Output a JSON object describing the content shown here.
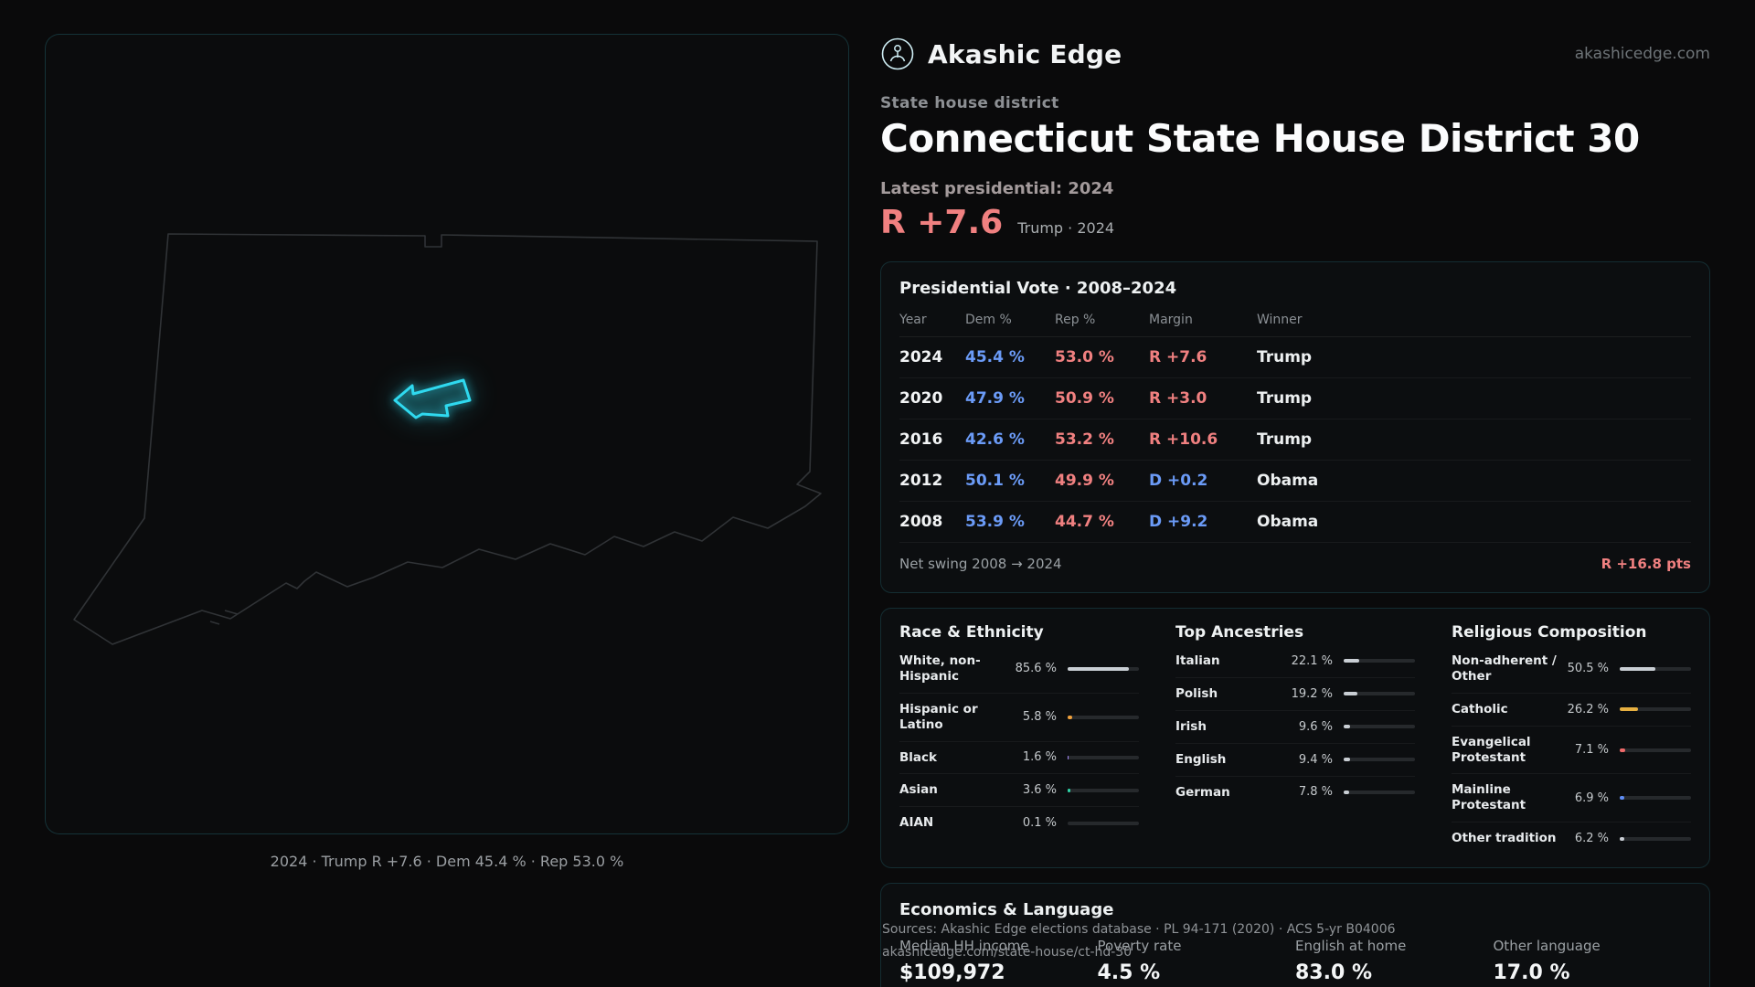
{
  "page": {
    "colors": {
      "accent": "#2fd9ef",
      "dem": "#6b9bf7",
      "rep": "#f08080"
    }
  },
  "header": {
    "brand": "Akashic Edge",
    "domain": "akashicedge.com"
  },
  "hero": {
    "eyebrow": "State house district",
    "title": "Connecticut State House District 30",
    "latest_label": "Latest presidential: 2024",
    "margin_value": "R +7.6",
    "margin_context": "Trump · 2024"
  },
  "map": {
    "caption": "2024 · Trump R +7.6 · Dem 45.4 % · Rep 53.0 %"
  },
  "presidential": {
    "title": "Presidential Vote · 2008–2024",
    "columns": [
      "Year",
      "Dem %",
      "Rep %",
      "Margin",
      "Winner"
    ],
    "rows": [
      {
        "year": "2024",
        "dem": "45.4 %",
        "rep": "53.0 %",
        "margin": "R +7.6",
        "margin_party": "R",
        "winner": "Trump"
      },
      {
        "year": "2020",
        "dem": "47.9 %",
        "rep": "50.9 %",
        "margin": "R +3.0",
        "margin_party": "R",
        "winner": "Trump"
      },
      {
        "year": "2016",
        "dem": "42.6 %",
        "rep": "53.2 %",
        "margin": "R +10.6",
        "margin_party": "R",
        "winner": "Trump"
      },
      {
        "year": "2012",
        "dem": "50.1 %",
        "rep": "49.9 %",
        "margin": "D +0.2",
        "margin_party": "D",
        "winner": "Obama"
      },
      {
        "year": "2008",
        "dem": "53.9 %",
        "rep": "44.7 %",
        "margin": "D +9.2",
        "margin_party": "D",
        "winner": "Obama"
      }
    ],
    "net_swing_label": "Net swing 2008 → 2024",
    "net_swing_value": "R +16.8 pts"
  },
  "demographics": {
    "race": {
      "title": "Race & Ethnicity",
      "rows": [
        {
          "label": "White, non-Hispanic",
          "value": "85.6 %",
          "pct": 85.6,
          "color": "#c9ced4"
        },
        {
          "label": "Hispanic or Latino",
          "value": "5.8 %",
          "pct": 5.8,
          "color": "#f0a13c"
        },
        {
          "label": "Black",
          "value": "1.6 %",
          "pct": 1.6,
          "color": "#a78bfa"
        },
        {
          "label": "Asian",
          "value": "3.6 %",
          "pct": 3.6,
          "color": "#2fd4a7"
        },
        {
          "label": "AIAN",
          "value": "0.1 %",
          "pct": 0.1,
          "color": "#c9ced4"
        }
      ]
    },
    "ancestries": {
      "title": "Top Ancestries",
      "rows": [
        {
          "label": "Italian",
          "value": "22.1 %",
          "pct": 22.1,
          "color": "#c9ced4"
        },
        {
          "label": "Polish",
          "value": "19.2 %",
          "pct": 19.2,
          "color": "#c9ced4"
        },
        {
          "label": "Irish",
          "value": "9.6 %",
          "pct": 9.6,
          "color": "#c9ced4"
        },
        {
          "label": "English",
          "value": "9.4 %",
          "pct": 9.4,
          "color": "#c9ced4"
        },
        {
          "label": "German",
          "value": "7.8 %",
          "pct": 7.8,
          "color": "#c9ced4"
        }
      ]
    },
    "religion": {
      "title": "Religious Composition",
      "rows": [
        {
          "label": "Non-adherent / Other",
          "value": "50.5 %",
          "pct": 50.5,
          "color": "#c9ced4"
        },
        {
          "label": "Catholic",
          "value": "26.2 %",
          "pct": 26.2,
          "color": "#e7b041"
        },
        {
          "label": "Evangelical Protestant",
          "value": "7.1 %",
          "pct": 7.1,
          "color": "#ef6a6a"
        },
        {
          "label": "Mainline Protestant",
          "value": "6.9 %",
          "pct": 6.9,
          "color": "#5f8df5"
        },
        {
          "label": "Other tradition",
          "value": "6.2 %",
          "pct": 6.2,
          "color": "#c9ced4"
        }
      ]
    }
  },
  "economics": {
    "title": "Economics & Language",
    "stats": [
      {
        "label": "Median HH income",
        "value": "$109,972"
      },
      {
        "label": "Poverty rate",
        "value": "4.5 %"
      },
      {
        "label": "English at home",
        "value": "83.0 %"
      },
      {
        "label": "Other language",
        "value": "17.0 %"
      }
    ]
  },
  "footer": {
    "line1": "Sources: Akashic Edge elections database · PL 94-171 (2020) · ACS 5-yr B04006",
    "line2": "akashicedge.com/state-house/ct-hd-30"
  }
}
